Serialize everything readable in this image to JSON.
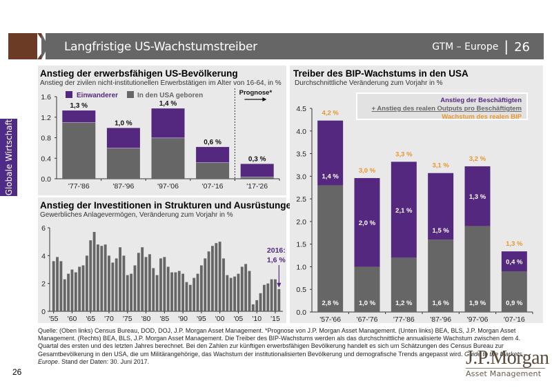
{
  "header": {
    "title": "Langfristige US-Wachstumstreiber",
    "series": "GTM – Europe",
    "separator": "|",
    "page": "26"
  },
  "sidebar": {
    "label": "Globale Wirtschaft"
  },
  "colors": {
    "purple": "#54287f",
    "gray": "#666666",
    "orange": "#e8962e",
    "panel_bg": "#e9e9e9",
    "header_bg": "#666666",
    "header_accent": "#6b3b26"
  },
  "chart_data": [
    {
      "id": "population",
      "type": "bar",
      "stacked": true,
      "title": "Anstieg der erwerbsfähigen US-Bevölkerung",
      "subtitle": "Anstieg der zivilen nicht-institutionellen Erwerbstätigen im Alter von 16-64, in %",
      "categories": [
        "'77-'86",
        "'87-'96",
        "'97-'06",
        "'07-'16",
        "'17-'26"
      ],
      "series": [
        {
          "name": "In den USA geboren",
          "color": "#666666",
          "values": [
            1.1,
            0.6,
            0.8,
            0.32,
            0.04
          ]
        },
        {
          "name": "Einwanderer",
          "color": "#54287f",
          "values": [
            0.23,
            0.39,
            0.57,
            0.3,
            0.25
          ]
        }
      ],
      "totals_labels": [
        "1,3 %",
        "1,0 %",
        "1,4 %",
        "0,6 %",
        "0,3 %"
      ],
      "legend": [
        "Einwanderer",
        "In den USA geboren"
      ],
      "legend_position": "top",
      "yticks": [
        "0.0",
        "0.4",
        "0.8",
        "1.2",
        "1.6"
      ],
      "ylim": [
        0,
        1.6
      ],
      "annotation": "Prognose*",
      "forecast_from_index": 4
    },
    {
      "id": "investment",
      "type": "bar",
      "title": "Anstieg der Investitionen in Strukturen und Ausrüstungen",
      "subtitle": "Gewerbliches Anlagevermögen, Veränderung zum Vorjahr in %",
      "x_start": 1955,
      "values": [
        3.6,
        3.9,
        3.6,
        2.3,
        2.7,
        3.0,
        2.8,
        3.2,
        3.3,
        4.0,
        5.1,
        5.7,
        4.8,
        4.7,
        4.8,
        4.0,
        3.5,
        3.8,
        4.6,
        4.0,
        2.6,
        2.7,
        3.3,
        4.2,
        4.6,
        3.9,
        4.1,
        3.1,
        2.6,
        3.8,
        3.9,
        3.2,
        2.8,
        2.8,
        2.9,
        2.7,
        2.1,
        1.9,
        2.4,
        2.7,
        3.3,
        3.8,
        4.3,
        4.7,
        4.9,
        5.0,
        3.8,
        2.6,
        2.4,
        2.5,
        2.7,
        3.2,
        3.4,
        2.9,
        0.5,
        0.8,
        1.3,
        1.9,
        2.0,
        2.3,
        2.3,
        1.6
      ],
      "xticks": [
        "'55",
        "'60",
        "'65",
        "'70",
        "'75",
        "'80",
        "'85",
        "'90",
        "'95",
        "'00",
        "'05",
        "'10",
        "'15"
      ],
      "yticks": [
        "0",
        "2",
        "4",
        "6"
      ],
      "ylim": [
        0,
        6
      ],
      "annotation": {
        "line1": "2016:",
        "line2": "1,6 %"
      }
    },
    {
      "id": "gdp",
      "type": "bar",
      "stacked": true,
      "title": "Treiber des BIP-Wachstums in den USA",
      "subtitle": "Durchschnittliche Veränderung zum Vorjahr in %",
      "categories": [
        "'57-'66",
        "'67-'76",
        "'77-'86",
        "'87-'96",
        "'97-'06",
        "'07-'16"
      ],
      "series": [
        {
          "name": "Anstieg des realen Outputs pro Beschäftigtem",
          "color": "#666666",
          "values": [
            2.8,
            1.0,
            1.2,
            1.6,
            1.9,
            0.9
          ],
          "labels": [
            "2,8 %",
            "1,0 %",
            "1,2 %",
            "1,6 %",
            "1,9 %",
            "0,9 %"
          ]
        },
        {
          "name": "Anstieg der Beschäftigten",
          "color": "#54287f",
          "values": [
            1.43,
            1.96,
            2.12,
            1.47,
            1.32,
            0.44
          ],
          "labels": [
            "1,4 %",
            "2,0 %",
            "2,1 %",
            "1,5 %",
            "1,3 %",
            "0,4 %"
          ]
        }
      ],
      "totals_labels": [
        "4,2 %",
        "3,0 %",
        "3,3 %",
        "3,1 %",
        "3,2 %",
        "1,3 %"
      ],
      "legend": [
        "Anstieg der Beschäftigten",
        "+ Anstieg des realen Outputs pro Beschäftigtem",
        "Wachstum des realen BIP"
      ],
      "legend_position": "top-right",
      "yticks": [
        "0.0",
        "0.5",
        "1.0",
        "1.5",
        "2.0",
        "2.5",
        "3.0",
        "3.5",
        "4.0",
        "4.5"
      ],
      "ylim": [
        0,
        4.5
      ]
    }
  ],
  "footnote": {
    "text": "Quelle: (Oben links) Census Bureau, DOD, DOJ, J.P. Morgan Asset Management. *Prognose von J.P. Morgan Asset Management. (Unten links) BEA, BLS, J.P. Morgan Asset Management. (Rechts) BEA, BLS, J.P. Morgan Asset Management. Die Treiber des BIP-Wachstums werden als das durchschnittliche annualisierte Wachstum zwischen dem 4. Quartal des ersten und des letzten Jahres berechnet. Bei den Zahlen zur künftigen erwerbsfähigen Bevölkerung handelt es sich um Schätzungen des Census Bureau zur Gesamtbevölkerung in den USA, die um Militärangehörige, das Wachstum der institutionalisierten Bevölkerung und demografische Trends angepasst wird.",
    "italic": "Guide to the Markets – Europe",
    "tail": ". Stand der Daten: 30. Juni 2017."
  },
  "page_number": "26",
  "logo": {
    "brand": "J.P.Morgan",
    "sub": "Asset Management"
  }
}
